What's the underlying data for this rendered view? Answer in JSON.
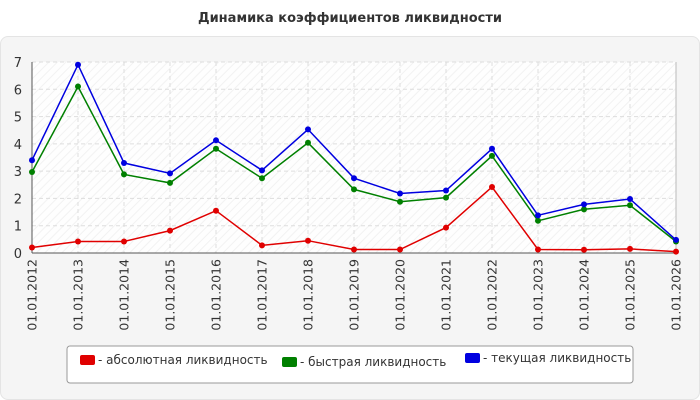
{
  "chart_data": {
    "type": "line",
    "title": "Динамика коэффициентов ликвидности",
    "xlabel": "",
    "ylabel": "",
    "ylim": [
      0,
      7
    ],
    "yticks": [
      "0",
      "1",
      "2",
      "3",
      "4",
      "5",
      "6",
      "7"
    ],
    "grid": true,
    "legend_position": "bottom",
    "categories": [
      "01.01.2012",
      "01.01.2013",
      "01.01.2014",
      "01.01.2015",
      "01.01.2016",
      "01.01.2017",
      "01.01.2018",
      "01.01.2019",
      "01.01.2020",
      "01.01.2021",
      "01.01.2022",
      "01.01.2023",
      "01.01.2024",
      "01.01.2025",
      "01.01.2026"
    ],
    "series": [
      {
        "name": "- абсолютная ликвидность",
        "color": "#e00000",
        "values": [
          0.2,
          0.42,
          0.42,
          0.82,
          1.55,
          0.28,
          0.45,
          0.13,
          0.13,
          0.93,
          2.42,
          0.13,
          0.12,
          0.15,
          0.05
        ]
      },
      {
        "name": "- быстрая ликвидность",
        "color": "#008000",
        "values": [
          2.97,
          6.1,
          2.88,
          2.57,
          3.82,
          2.74,
          4.04,
          2.33,
          1.88,
          2.03,
          3.56,
          1.18,
          1.6,
          1.75,
          0.42
        ]
      },
      {
        "name": "- текущая ликвидность",
        "color": "#0000e0",
        "values": [
          3.4,
          6.9,
          3.3,
          2.92,
          4.13,
          3.03,
          4.53,
          2.74,
          2.18,
          2.29,
          3.82,
          1.38,
          1.78,
          1.98,
          0.48
        ]
      }
    ]
  }
}
